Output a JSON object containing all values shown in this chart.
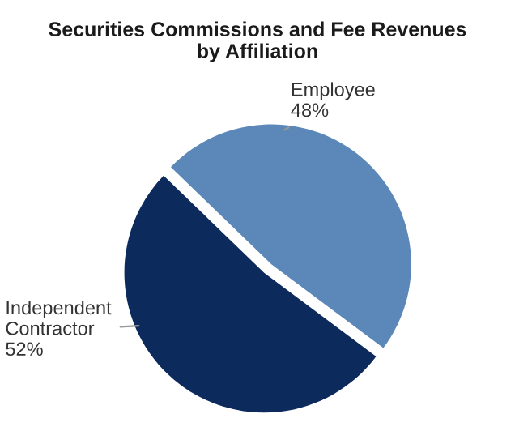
{
  "chart_data": {
    "type": "pie",
    "title": "Securities Commissions and Fee Revenues\nby Affiliation",
    "categories": [
      "Employee",
      "Independent Contractor"
    ],
    "values": [
      48,
      52
    ],
    "value_labels": [
      "48%",
      "52%"
    ],
    "colors": [
      "#5b88b8",
      "#0c2a5b"
    ]
  }
}
